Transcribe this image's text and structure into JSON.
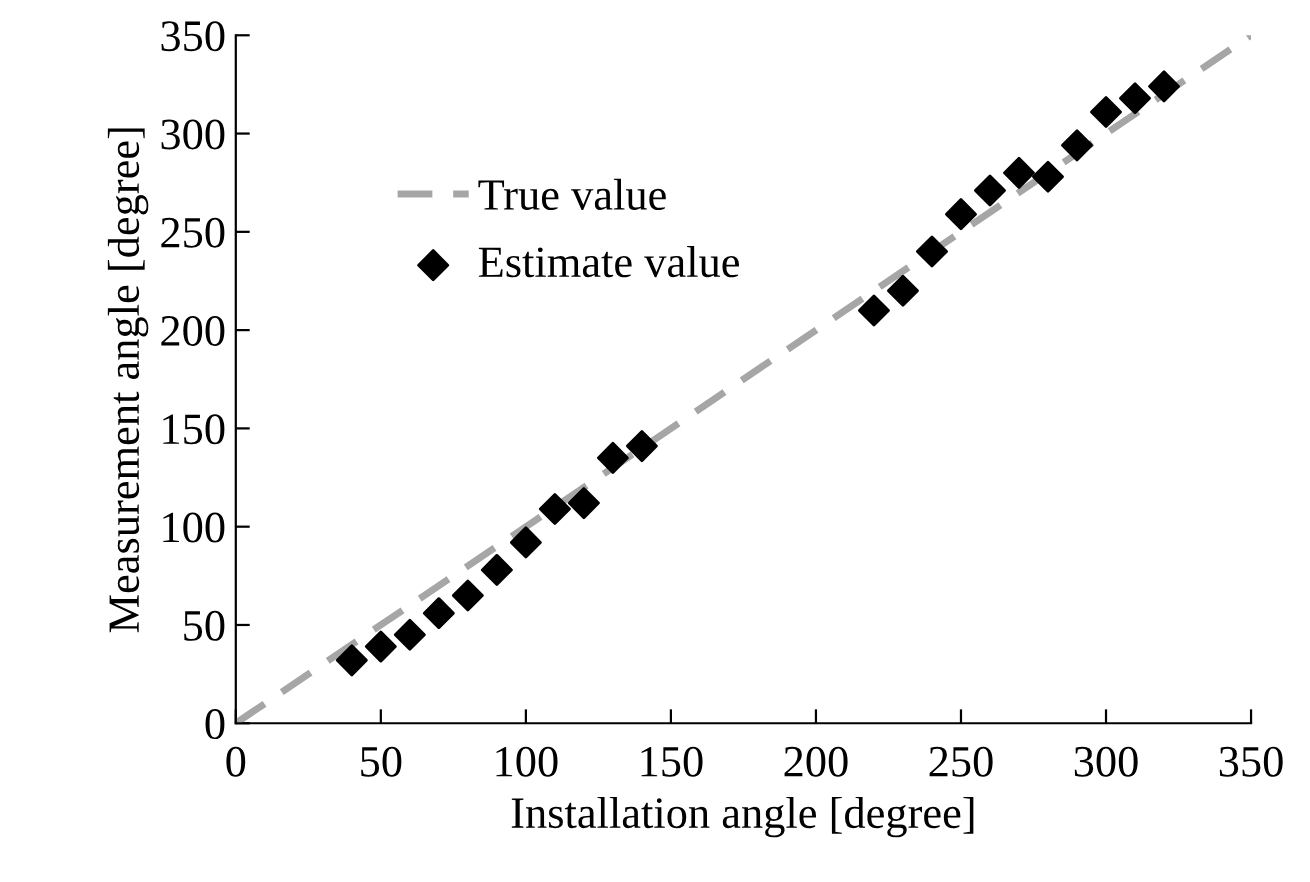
{
  "chart_data": {
    "type": "scatter",
    "xlabel": "Installation angle [degree]",
    "ylabel": "Measurement angle [degree]",
    "xlim": [
      0,
      350
    ],
    "ylim": [
      0,
      350
    ],
    "xticks": [
      0,
      50,
      100,
      150,
      200,
      250,
      300,
      350
    ],
    "yticks": [
      0,
      50,
      100,
      150,
      200,
      250,
      300,
      350
    ],
    "grid": false,
    "legend": "top left",
    "series": [
      {
        "name": "True value",
        "type": "line",
        "line_style": "dashed",
        "marker": "none",
        "color": "#a6a6a6",
        "x": [
          0,
          350
        ],
        "values": [
          0,
          350
        ]
      },
      {
        "name": "Estimate value",
        "marker": "diamond",
        "color": "#000000",
        "x": [
          40,
          50,
          60,
          70,
          80,
          90,
          100,
          110,
          120,
          130,
          140,
          220,
          230,
          240,
          250,
          260,
          270,
          280,
          290,
          300,
          310,
          320
        ],
        "values": [
          32,
          39,
          45,
          56,
          65,
          78,
          92,
          109,
          112,
          135,
          141,
          210,
          220,
          240,
          259,
          271,
          280,
          278,
          294,
          311,
          318,
          324
        ]
      }
    ]
  }
}
